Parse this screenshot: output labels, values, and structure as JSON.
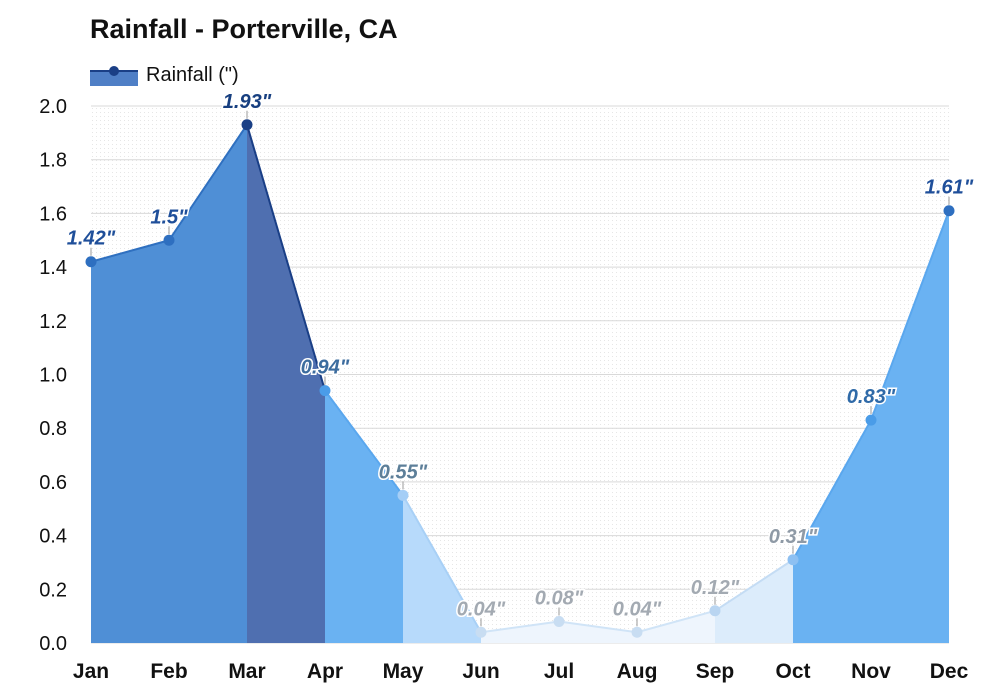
{
  "chart_data": {
    "type": "area",
    "title": "Rainfall - Porterville, CA",
    "categories": [
      "Jan",
      "Feb",
      "Mar",
      "Apr",
      "May",
      "Jun",
      "Jul",
      "Aug",
      "Sep",
      "Oct",
      "Nov",
      "Dec"
    ],
    "series": [
      {
        "name": "Rainfall (\")",
        "values": [
          1.42,
          1.5,
          1.93,
          0.94,
          0.55,
          0.04,
          0.08,
          0.04,
          0.12,
          0.31,
          0.83,
          1.61
        ],
        "data_labels": [
          "1.42\"",
          "1.5\"",
          "1.93\"",
          "0.94\"",
          "0.55\"",
          "0.04\"",
          "0.08\"",
          "0.04\"",
          "0.12\"",
          "0.31\"",
          "0.83\"",
          "1.61\""
        ]
      }
    ],
    "ylim": [
      0,
      2.0
    ],
    "yticks": [
      "0.0",
      "0.2",
      "0.4",
      "0.6",
      "0.8",
      "1.0",
      "1.2",
      "1.4",
      "1.6",
      "1.8",
      "2.0"
    ],
    "xlabel": "",
    "ylabel": "",
    "grid": true,
    "legend": "top-left",
    "colors": {
      "fills": [
        "#4f8fd6",
        "#4f8fd6",
        "#4f6fb0",
        "#6ab2f2",
        "#b7dafb",
        "#eef5fd",
        "#eef5fd",
        "#eef5fd",
        "#dcecfb",
        "#6ab2f2",
        "#6ab2f2",
        "#4f8fd6"
      ],
      "line_colors": [
        "#2f70c0",
        "#2f70c0",
        "#1a3f86",
        "#5aa7ee",
        "#a8d0f6",
        "#d0e4f7",
        "#d0e4f7",
        "#d0e4f7",
        "#c4dcf4",
        "#5aa7ee",
        "#5aa7ee",
        "#2f70c0"
      ],
      "point_colors": [
        "#2e6fc0",
        "#2e6fc0",
        "#1a3f86",
        "#4a9ce8",
        "#a5cef6",
        "#c8ddf2",
        "#c8ddf2",
        "#c8ddf2",
        "#b9d5f1",
        "#8dc0f2",
        "#4a9ce8",
        "#2e6fc0"
      ],
      "label_colors": [
        "#1f4f9a",
        "#1f4f9a",
        "#173f80",
        "#3c6c9e",
        "#5d7f99",
        "#a3aab2",
        "#a3aab2",
        "#a3aab2",
        "#a3aab2",
        "#8f9aa6",
        "#2f6aa8",
        "#1f4f9a"
      ]
    }
  }
}
